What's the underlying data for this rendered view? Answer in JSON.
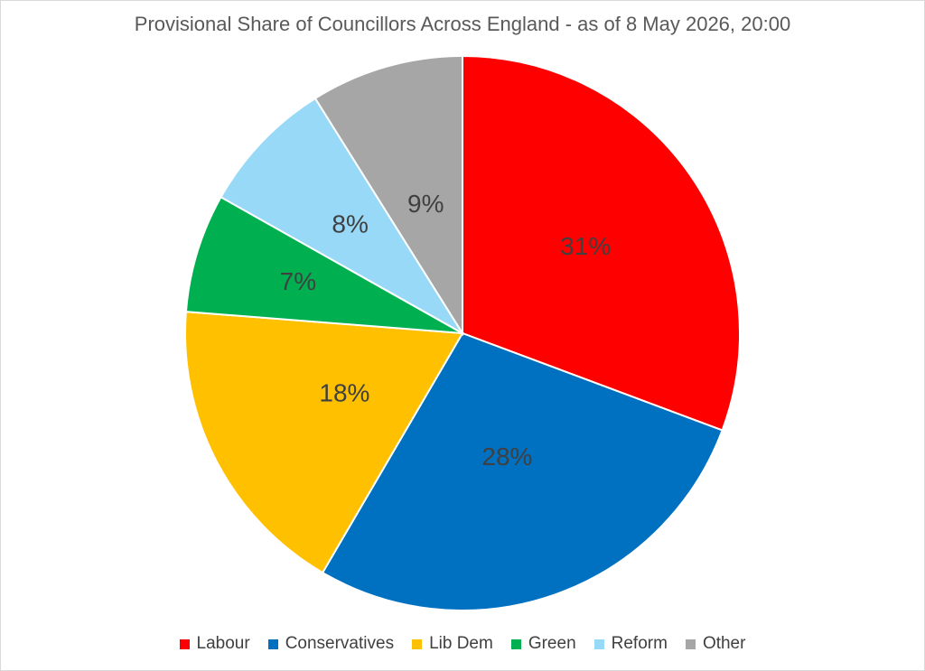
{
  "chart_data": {
    "type": "pie",
    "title": "Provisional Share of Councillors Across England - as of 8 May 2026, 20:00",
    "categories": [
      "Labour",
      "Conservatives",
      "Lib Dem",
      "Green",
      "Reform",
      "Other"
    ],
    "values": [
      31,
      28,
      18,
      7,
      8,
      9
    ],
    "labels": [
      "31%",
      "28%",
      "18%",
      "7%",
      "8%",
      "9%"
    ],
    "colors": [
      "#FF0000",
      "#0070C0",
      "#FFC000",
      "#00B050",
      "#97D9F7",
      "#A6A6A6"
    ],
    "legend_position": "bottom",
    "start_angle": "top, clockwise"
  }
}
